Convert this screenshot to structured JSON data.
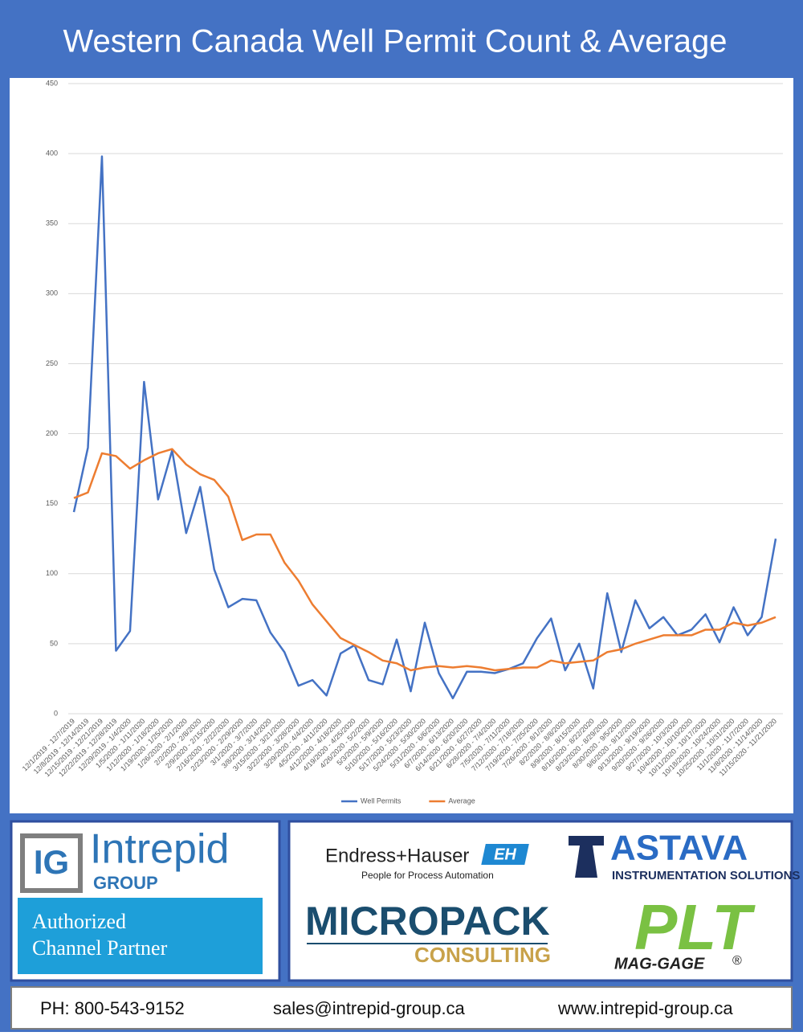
{
  "chart_data": {
    "type": "line",
    "title": "Western Canada Well Permit Count & Average",
    "categories": [
      "12/1/2019 - 12/7/2019",
      "12/8/2019 - 12/14/2019",
      "12/15/2019 - 12/21/2019",
      "12/22/2019 - 12/28/2019",
      "12/29/2019 - 1/4/2020",
      "1/5/2020 - 1/11/2020",
      "1/12/2020 - 1/18/2020",
      "1/19/2020 - 1/25/2020",
      "1/26/2020 - 2/1/2020",
      "2/2/2020 - 2/8/2020",
      "2/9/2020 - 2/15/2020",
      "2/16/2020 - 2/22/2020",
      "2/23/2020 - 2/29/2020",
      "3/1/2020 - 3/7/2020",
      "3/8/2020 - 3/14/2020",
      "3/15/2020 - 3/21/2020",
      "3/22/2020 - 3/28/2020",
      "3/29/2020 - 4/4/2020",
      "4/5/2020 - 4/11/2020",
      "4/12/2020 - 4/18/2020",
      "4/19/2020 - 4/25/2020",
      "4/26/2020 - 5/2/2020",
      "5/3/2020 - 5/9/2020",
      "5/10/2020 - 5/16/2020",
      "5/17/2020 - 5/23/2020",
      "5/24/2020 - 5/30/2020",
      "5/31/2020 - 6/6/2020",
      "6/7/2020 - 6/13/2020",
      "6/14/2020 - 6/20/2020",
      "6/21/2020 - 6/27/2020",
      "6/28/2020 - 7/4/2020",
      "7/5/2020 - 7/11/2020",
      "7/12/2020 - 7/18/2020",
      "7/19/2020 - 7/25/2020",
      "7/26/2020 - 8/1/2020",
      "8/2/2020 - 8/8/2020",
      "8/9/2020 - 8/15/2020",
      "8/16/2020 - 8/22/2020",
      "8/23/2020 - 8/29/2020",
      "8/30/2020 - 9/5/2020",
      "9/6/2020 - 9/12/2020",
      "9/13/2020 - 9/19/2020",
      "9/20/2020 - 9/26/2020",
      "9/27/2020 - 10/3/2020",
      "10/4/2020 - 10/10/2020",
      "10/11/2020 - 10/17/2020",
      "10/18/2020 - 10/24/2020",
      "10/25/2020 - 10/31/2020",
      "11/1/2020 - 11/7/2020",
      "11/8/2020 - 11/14/2020",
      "11/15/2020 - 11/21/2020"
    ],
    "series": [
      {
        "name": "Well Permits",
        "color": "#4472c4",
        "values": [
          144,
          190,
          398,
          45,
          59,
          237,
          153,
          188,
          129,
          162,
          103,
          76,
          82,
          81,
          58,
          44,
          20,
          24,
          13,
          43,
          49,
          24,
          21,
          53,
          16,
          65,
          29,
          11,
          30,
          30,
          29,
          32,
          36,
          54,
          68,
          31,
          50,
          18,
          86,
          44,
          81,
          61,
          69,
          56,
          60,
          71,
          51,
          76,
          56,
          69,
          125
        ]
      },
      {
        "name": "Average",
        "color": "#ed7d31",
        "values": [
          154,
          158,
          186,
          184,
          175,
          181,
          186,
          189,
          178,
          171,
          167,
          155,
          124,
          128,
          128,
          108,
          95,
          78,
          66,
          54,
          49,
          44,
          38,
          36,
          31,
          33,
          34,
          33,
          34,
          33,
          31,
          32,
          33,
          33,
          38,
          36,
          37,
          38,
          44,
          46,
          50,
          53,
          56,
          56,
          56,
          60,
          60,
          65,
          63,
          65,
          69
        ]
      }
    ],
    "ylim": [
      0,
      450
    ],
    "yticks": [
      0,
      50,
      100,
      150,
      200,
      250,
      300,
      350,
      400,
      450
    ],
    "grid": true,
    "legend": "bottom"
  },
  "branding": {
    "intrepid": {
      "mark": "IG",
      "name": "Intrepid",
      "sub": "GROUP",
      "badge": [
        "Authorized",
        "Channel Partner"
      ]
    },
    "endress": {
      "name": "Endress+Hauser",
      "mark": "EH",
      "tagline": "People for Process Automation"
    },
    "astava": {
      "name": "ASTAVA",
      "tagline": "INSTRUMENTATION SOLUTIONS"
    },
    "micropack": {
      "name": "MICROPACK",
      "sub": "CONSULTING"
    },
    "plt": {
      "name": "PLT",
      "sub": "MAG-GAGE",
      "mark": "®"
    }
  },
  "footer": {
    "phone": "PH: 800-543-9152",
    "email": "sales@intrepid-group.ca",
    "web": "www.intrepid-group.ca"
  }
}
